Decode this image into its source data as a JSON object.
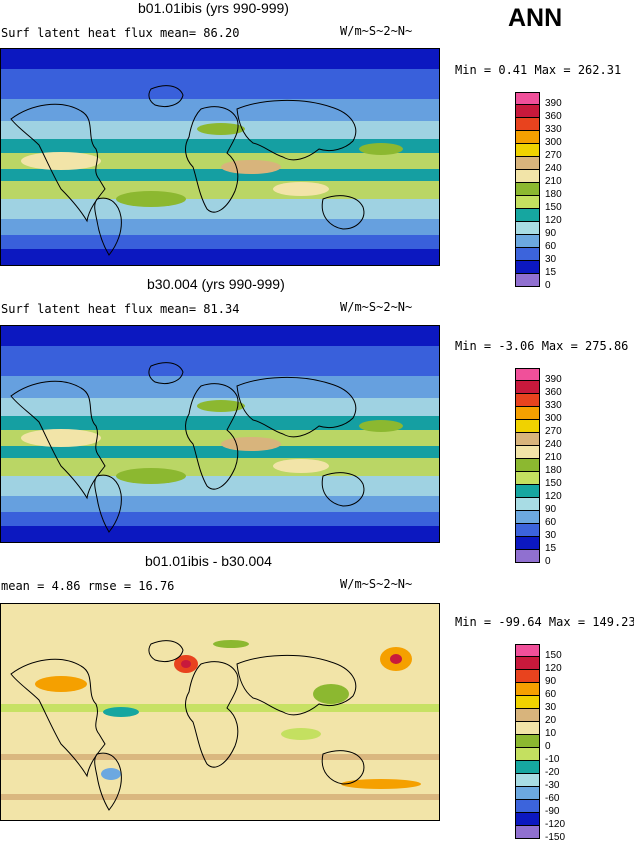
{
  "ann_label": "ANN",
  "panels": [
    {
      "title": "b01.01ibis (yrs 990-999)",
      "left_text": "Surf latent heat flux   mean=  86.20",
      "right_text": "W/m~S~2~N~",
      "minmax": "Min =   0.41 Max = 262.31",
      "theme": "flux",
      "legend": [
        {
          "label": "390",
          "color": "#f0509a"
        },
        {
          "label": "360",
          "color": "#c8193c"
        },
        {
          "label": "330",
          "color": "#e8431e"
        },
        {
          "label": "300",
          "color": "#f5a000"
        },
        {
          "label": "270",
          "color": "#f0d200"
        },
        {
          "label": "240",
          "color": "#d8b47c"
        },
        {
          "label": "210",
          "color": "#f2e4a8"
        },
        {
          "label": "180",
          "color": "#8cb830"
        },
        {
          "label": "150",
          "color": "#c4e060"
        },
        {
          "label": "120",
          "color": "#16a6a0"
        },
        {
          "label": "90",
          "color": "#a8dce4"
        },
        {
          "label": "60",
          "color": "#6ca8e0"
        },
        {
          "label": "30",
          "color": "#3c64dc"
        },
        {
          "label": "15",
          "color": "#0c18c0"
        },
        {
          "label": "0",
          "color": "#9070d0"
        }
      ]
    },
    {
      "title": "b30.004 (yrs 990-999)",
      "left_text": "Surf latent heat flux   mean=  81.34",
      "right_text": "W/m~S~2~N~",
      "minmax": "Min =  -3.06 Max = 275.86",
      "theme": "flux",
      "legend": [
        {
          "label": "390",
          "color": "#f0509a"
        },
        {
          "label": "360",
          "color": "#c8193c"
        },
        {
          "label": "330",
          "color": "#e8431e"
        },
        {
          "label": "300",
          "color": "#f5a000"
        },
        {
          "label": "270",
          "color": "#f0d200"
        },
        {
          "label": "240",
          "color": "#d8b47c"
        },
        {
          "label": "210",
          "color": "#f2e4a8"
        },
        {
          "label": "180",
          "color": "#8cb830"
        },
        {
          "label": "150",
          "color": "#c4e060"
        },
        {
          "label": "120",
          "color": "#16a6a0"
        },
        {
          "label": "90",
          "color": "#a8dce4"
        },
        {
          "label": "60",
          "color": "#6ca8e0"
        },
        {
          "label": "30",
          "color": "#3c64dc"
        },
        {
          "label": "15",
          "color": "#0c18c0"
        },
        {
          "label": "0",
          "color": "#9070d0"
        }
      ]
    },
    {
      "title": "b01.01ibis - b30.004",
      "left_text": "mean =   4.86        rmse =  16.76",
      "right_text": "W/m~S~2~N~",
      "minmax": "Min = -99.64 Max = 149.23",
      "theme": "diff",
      "legend": [
        {
          "label": "150",
          "color": "#f0509a"
        },
        {
          "label": "120",
          "color": "#c8193c"
        },
        {
          "label": "90",
          "color": "#e8431e"
        },
        {
          "label": "60",
          "color": "#f5a000"
        },
        {
          "label": "30",
          "color": "#f0d200"
        },
        {
          "label": "20",
          "color": "#d8b47c"
        },
        {
          "label": "10",
          "color": "#f2e4a8"
        },
        {
          "label": "0",
          "color": "#8cb830"
        },
        {
          "label": "-10",
          "color": "#c4e060"
        },
        {
          "label": "-20",
          "color": "#16a6a0"
        },
        {
          "label": "-30",
          "color": "#a8dce4"
        },
        {
          "label": "-60",
          "color": "#6ca8e0"
        },
        {
          "label": "-90",
          "color": "#3c64dc"
        },
        {
          "label": "-120",
          "color": "#0c18c0"
        },
        {
          "label": "-150",
          "color": "#9070d0"
        }
      ]
    }
  ]
}
